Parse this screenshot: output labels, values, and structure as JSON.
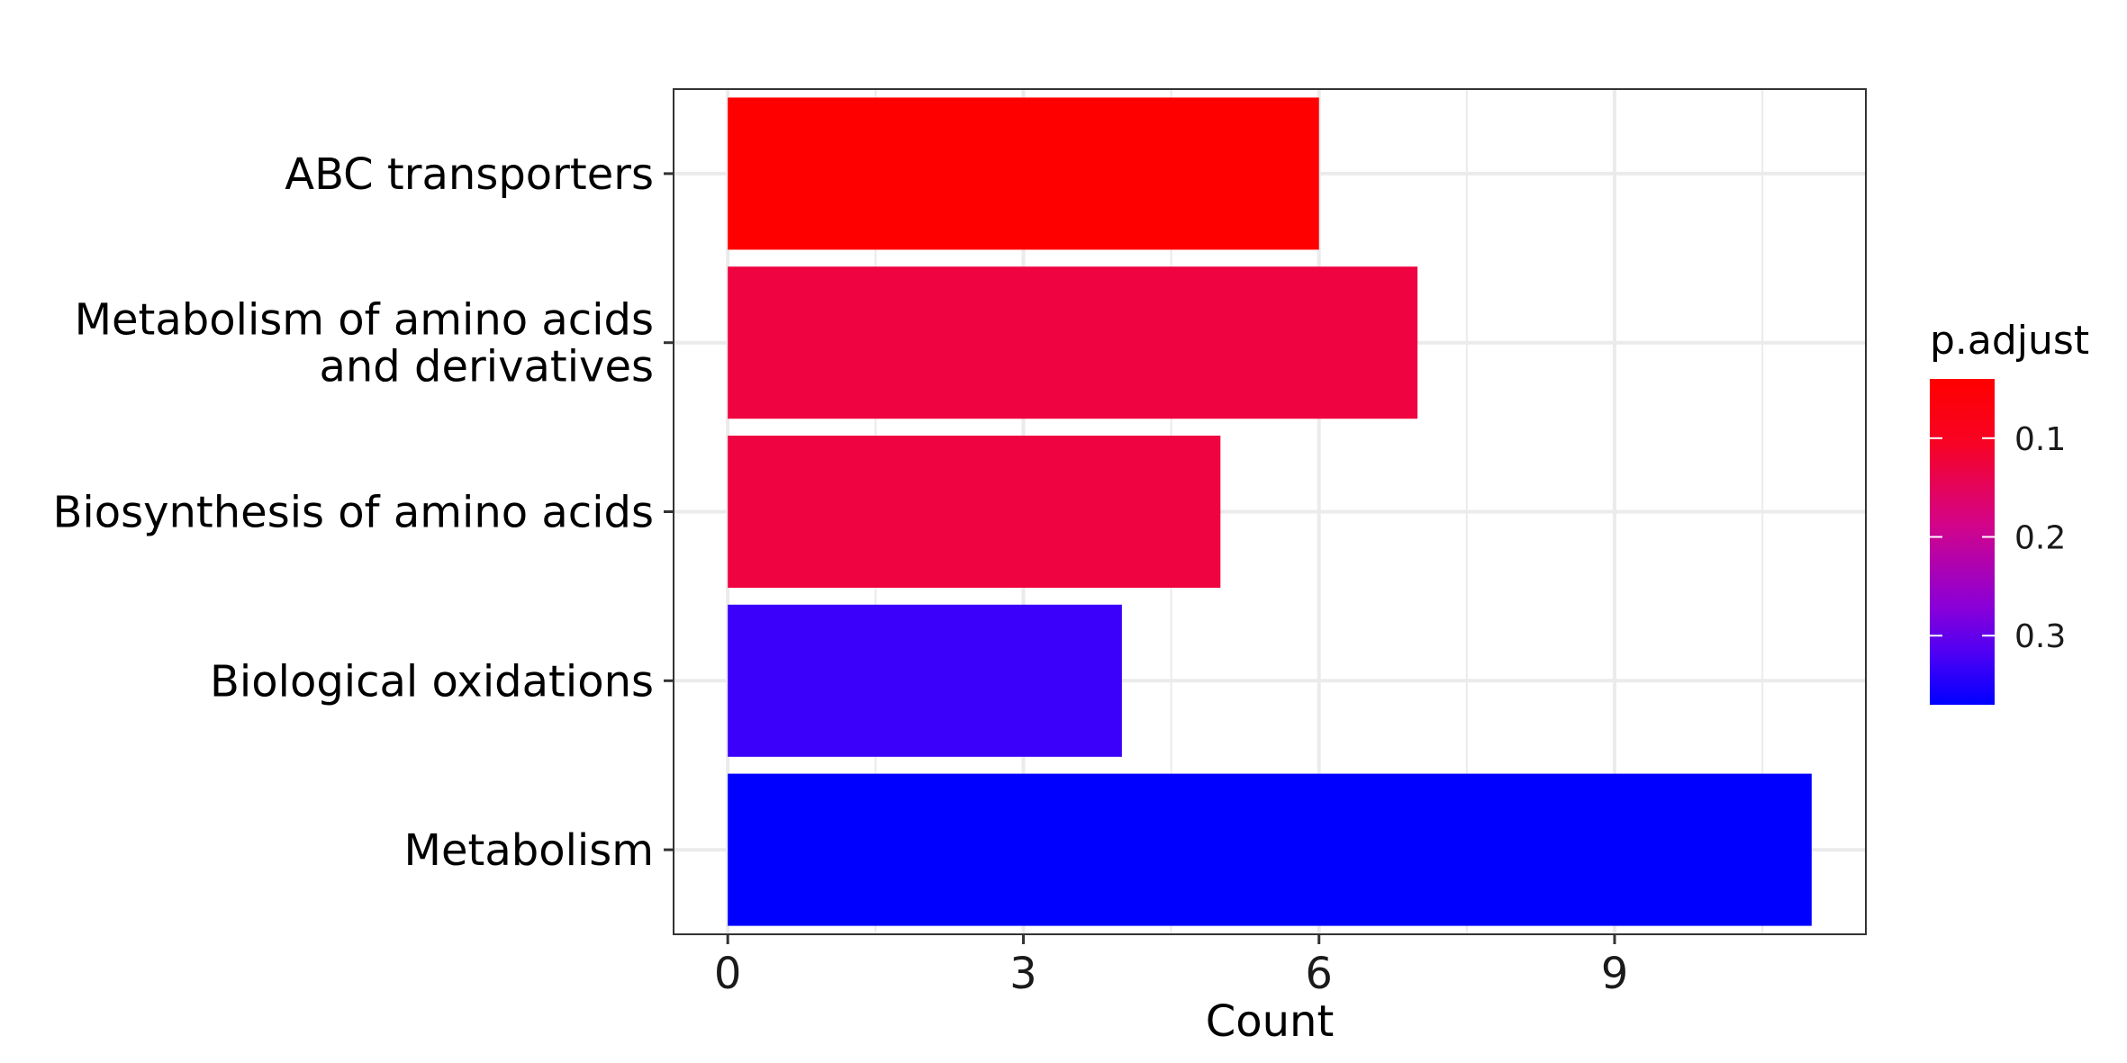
{
  "chart_data": {
    "type": "bar",
    "orientation": "horizontal",
    "categories": [
      "ABC transporters",
      "Metabolism of amino acids\nand derivatives",
      "Biosynthesis of amino acids",
      "Biological oxidations",
      "Metabolism"
    ],
    "values": [
      6,
      7,
      5,
      4,
      11
    ],
    "p_adjust": [
      0.05,
      0.12,
      0.12,
      0.35,
      0.37
    ],
    "bar_colors": [
      "#FF0000",
      "#EF0341",
      "#EF0341",
      "#3A00FA",
      "#0000FF"
    ],
    "xlabel": "Count",
    "ylabel": "",
    "xlim": [
      -0.55,
      11.55
    ],
    "x_ticks": [
      0,
      3,
      6,
      9
    ],
    "x_tick_labels": [
      "0",
      "3",
      "6",
      "9"
    ],
    "grid": true,
    "legend": {
      "title": "p.adjust",
      "placement": "right",
      "type": "colorbar",
      "range": [
        0.04,
        0.37
      ],
      "ticks": [
        0.1,
        0.2,
        0.3
      ],
      "tick_labels": [
        "0.1",
        "0.2",
        "0.3"
      ],
      "color_low_value": "#FF0000",
      "color_high_value": "#0000FF"
    }
  }
}
